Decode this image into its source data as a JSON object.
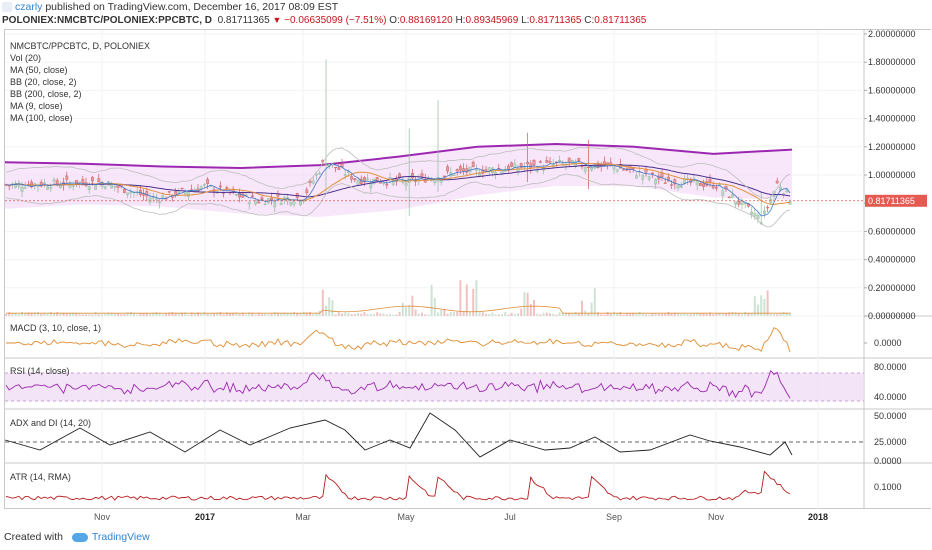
{
  "header": {
    "author": "czarly",
    "published_text": "published on TradingView.com, December 16, 2017 08:09 EST",
    "symbol": "POLONIEX:NMCBTC/POLONIEX:PPCBTC, D",
    "last": "0.81711365",
    "change": "−0.06635099 (−7.51%)",
    "o_label": "O:",
    "o": "0.88169120",
    "h_label": "H:",
    "h": "0.89345969",
    "l_label": "L:",
    "l": "0.81711365",
    "c_label": "C:",
    "c": "0.81711365"
  },
  "legend": {
    "title": "NMCBTC/PPCBTC, D, POLONIEX",
    "vol": "Vol (20)",
    "ma50": "MA (50, close)",
    "bb20": "BB (20, close, 2)",
    "bb200": "BB (200, close, 2)",
    "ma9": "MA (9, close)",
    "ma100": "MA (100, close)"
  },
  "panes": {
    "macd": "MACD (3, 10, close, 1)",
    "rsi": "RSI (14, close)",
    "adx": "ADX and DI (14, 20)",
    "atr": "ATR (14, RMA)"
  },
  "footer": {
    "created": "Created with",
    "brand": "TradingView"
  },
  "colors": {
    "up": "#8fb79d",
    "down": "#cc5a5a",
    "upFill": "#b9d8c3",
    "downFill": "#e39a9a",
    "bb200": "#9c27b0",
    "bbFill": "#f3d6f7",
    "bb20": "#bdbdbd",
    "ma": "#e0913a",
    "ma100": "#4a2f8f",
    "ma9": "#3c78c8",
    "macd": "#e08b2f",
    "rsi": "#9c27b0",
    "rsiFill": "#eedaf3",
    "adx": "#222222",
    "atr": "#b71c1c",
    "priceTag": "#e65a52"
  },
  "chart_data": {
    "type": "candlestick",
    "title": "NMCBTC/PPCBTC, D, POLONIEX",
    "x_ticks": [
      "Nov",
      "2017",
      "Mar",
      "May",
      "Jul",
      "Sep",
      "Nov",
      "2018"
    ],
    "price_axis": [
      "2.00000000",
      "1.80000000",
      "1.60000000",
      "1.40000000",
      "1.20000000",
      "1.00000000",
      "0.80000000",
      "0.60000000",
      "0.40000000",
      "0.20000000",
      "0.00000000"
    ],
    "ylim": [
      0,
      2.0
    ],
    "last_price_label": "0.81711365",
    "close_path": [
      {
        "t": "2016-10",
        "v": 0.93
      },
      {
        "t": "2016-11",
        "v": 0.95
      },
      {
        "t": "2016-12",
        "v": 0.83
      },
      {
        "t": "2017-01",
        "v": 0.92
      },
      {
        "t": "2017-02",
        "v": 0.82
      },
      {
        "t": "2017-03",
        "v": 0.84
      },
      {
        "t": "2017-03-10",
        "v": 1.1
      },
      {
        "t": "2017-04",
        "v": 0.97
      },
      {
        "t": "2017-05",
        "v": 0.95
      },
      {
        "t": "2017-06",
        "v": 1.02
      },
      {
        "t": "2017-07",
        "v": 1.05
      },
      {
        "t": "2017-08",
        "v": 1.08
      },
      {
        "t": "2017-09",
        "v": 1.06
      },
      {
        "t": "2017-10",
        "v": 0.96
      },
      {
        "t": "2017-11",
        "v": 0.93
      },
      {
        "t": "2017-11-25",
        "v": 0.68
      },
      {
        "t": "2017-12-05",
        "v": 0.95
      },
      {
        "t": "2017-12-16",
        "v": 0.8171
      }
    ],
    "bb200_upper": [
      1.09,
      1.08,
      1.06,
      1.05,
      1.07,
      1.13,
      1.2,
      1.22,
      1.2,
      1.15,
      1.18
    ],
    "volume_axis": [
      "0.40000000",
      "0.20000000",
      "0.00000000"
    ],
    "macd_axis": [
      "0.0000"
    ],
    "rsi_axis": [
      "80.0000",
      "40.0000"
    ],
    "adx_axis": [
      "50.0000",
      "25.0000",
      "0.0000"
    ],
    "atr_axis": [
      "0.1000"
    ]
  }
}
